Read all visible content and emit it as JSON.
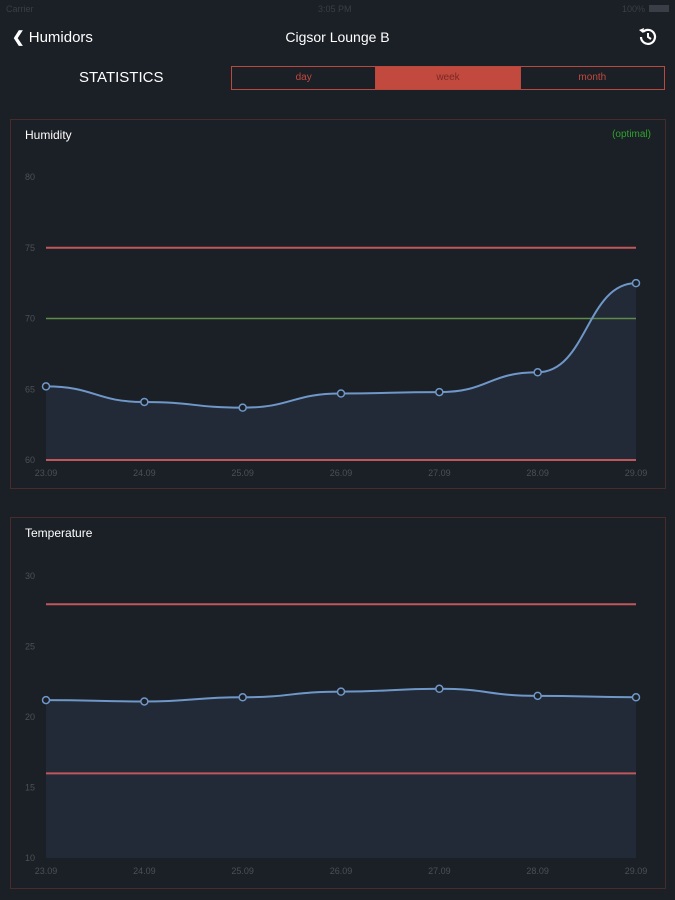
{
  "status": {
    "carrier": "Carrier",
    "time": "3:05 PM",
    "battery": "100%"
  },
  "nav": {
    "back": "Humidors",
    "title": "Cigsor Lounge B"
  },
  "header": {
    "label": "STATISTICS",
    "segments": [
      "day",
      "week",
      "month"
    ],
    "selected": "week"
  },
  "colors": {
    "accent": "#c2493e",
    "line": "#6f97c8",
    "optimal": "#5f8a4a",
    "limit": "#c0575a"
  },
  "chart_data": [
    {
      "type": "area",
      "title": "Humidity",
      "legend": "(optimal)",
      "x": [
        "23.09",
        "24.09",
        "25.09",
        "26.09",
        "27.09",
        "28.09",
        "29.09"
      ],
      "values": [
        65.2,
        64.1,
        63.7,
        64.7,
        64.8,
        66.2,
        72.5
      ],
      "ylim": [
        60,
        80
      ],
      "yticks": [
        "60",
        "65",
        "70",
        "75",
        "80"
      ],
      "limits": [
        75,
        60
      ],
      "optimal": 70
    },
    {
      "type": "area",
      "title": "Temperature",
      "x": [
        "23.09",
        "24.09",
        "25.09",
        "26.09",
        "27.09",
        "28.09",
        "29.09"
      ],
      "values": [
        21.2,
        21.1,
        21.4,
        21.8,
        22.0,
        21.5,
        21.4
      ],
      "ylim": [
        10,
        30
      ],
      "yticks": [
        "10",
        "15",
        "20",
        "25",
        "30"
      ],
      "limits": [
        28,
        16
      ]
    }
  ]
}
